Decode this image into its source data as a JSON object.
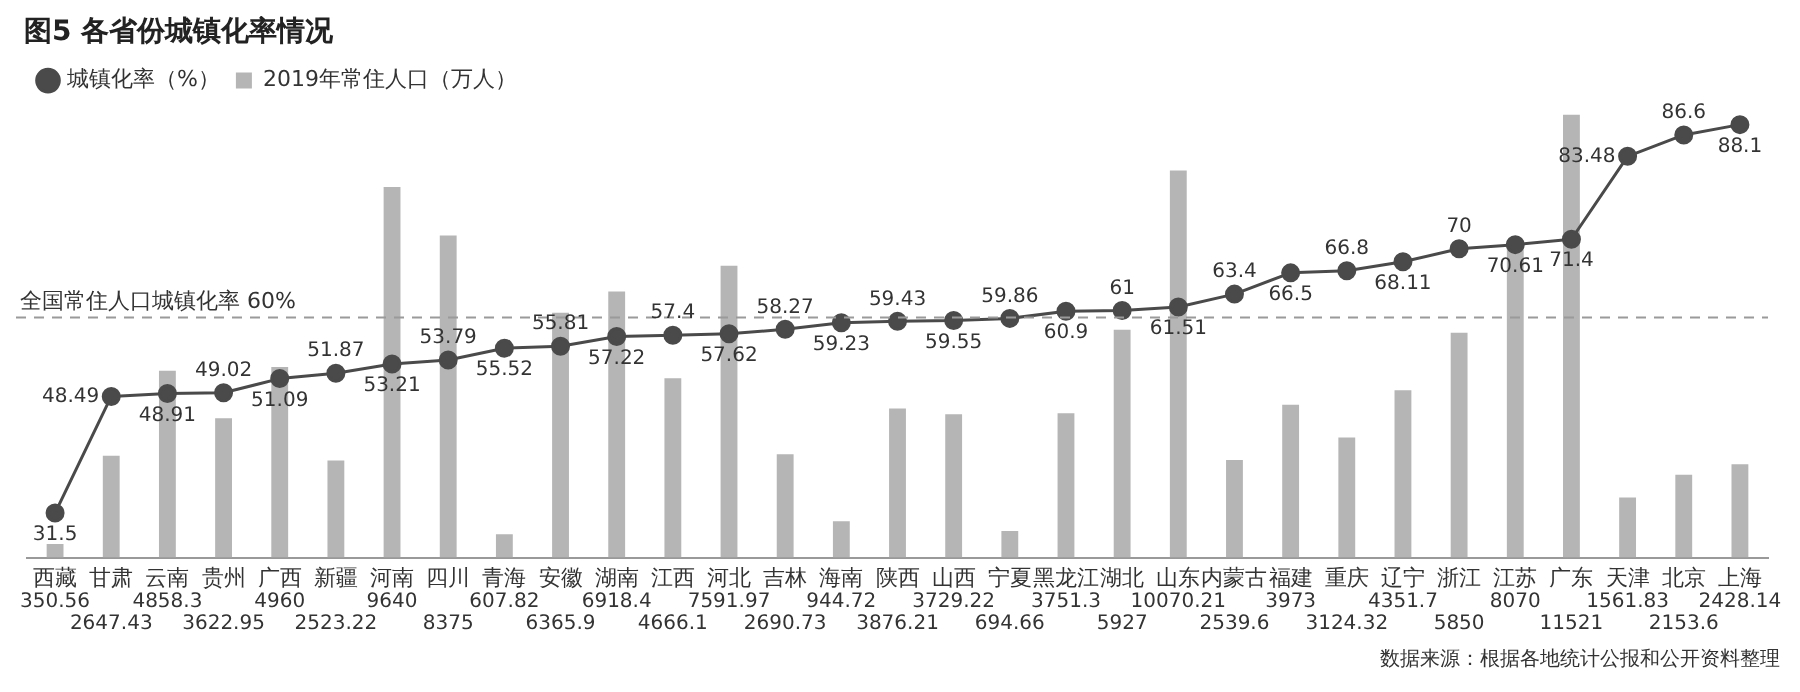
{
  "chart_data": {
    "type": "bar",
    "title": "图5 各省份城镇化率情况",
    "categories": [
      "西藏",
      "甘肃",
      "云南",
      "贵州",
      "广西",
      "新疆",
      "河南",
      "四川",
      "青海",
      "安徽",
      "湖南",
      "江西",
      "河北",
      "吉林",
      "海南",
      "陕西",
      "山西",
      "宁夏",
      "黑龙江",
      "湖北",
      "山东",
      "内蒙古",
      "福建",
      "重庆",
      "辽宁",
      "浙江",
      "江苏",
      "广东",
      "天津",
      "北京",
      "上海"
    ],
    "series": [
      {
        "name": "2019年常住人口（万人）",
        "color": "#b5b5b5",
        "values": [
          350.56,
          2647.43,
          4858.3,
          3622.95,
          4960,
          2523.22,
          9640,
          8375,
          607.82,
          6365.9,
          6918.4,
          4666.1,
          7591.97,
          2690.73,
          944.72,
          3876.21,
          3729.22,
          694.66,
          3751.3,
          5927,
          10070.21,
          2539.6,
          3973,
          3124.32,
          4351.7,
          5850,
          8070,
          11521,
          1561.83,
          2153.6,
          2428.14
        ]
      },
      {
        "name": "城镇化率（%）",
        "type": "line",
        "axis": "y2",
        "color": "#4a4a4a",
        "marker": "circle",
        "values": [
          31.5,
          48.49,
          48.91,
          49.02,
          51.09,
          51.87,
          53.21,
          53.79,
          55.52,
          55.81,
          57.22,
          57.4,
          57.62,
          58.27,
          59.23,
          59.43,
          59.55,
          59.86,
          60.9,
          61,
          61.51,
          63.4,
          66.5,
          66.8,
          68.11,
          70,
          70.61,
          71.4,
          83.48,
          86.6,
          88.1
        ]
      }
    ],
    "ylim": [
      0,
      11600
    ],
    "y2lim": [
      25,
      90
    ],
    "tick_labels": "x",
    "grid": false,
    "legend": "top left",
    "data_labels": true,
    "ref_lines": [
      {
        "axis": "y2",
        "value": 60,
        "label": "全国常住人口城镇化率 60%",
        "color": "#9a9a9a",
        "line_style": "dashed"
      }
    ],
    "annotations": [
      "数据来源：根据各地统计公报和公开资料整理"
    ]
  }
}
